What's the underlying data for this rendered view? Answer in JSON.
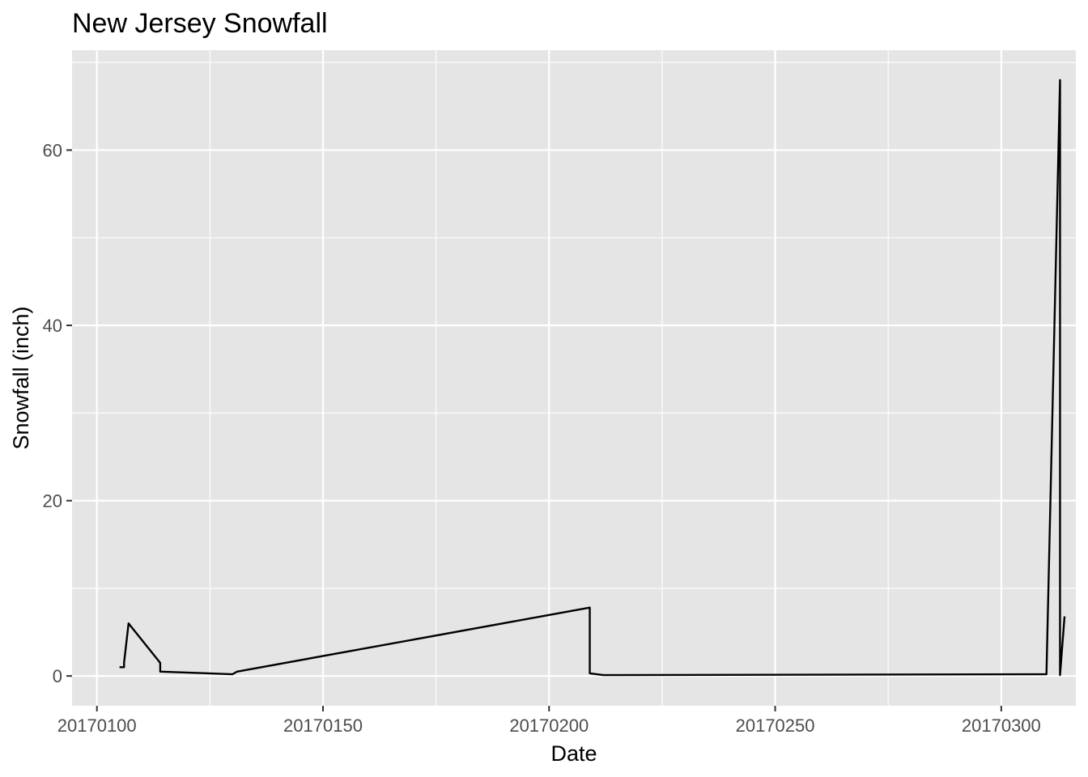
{
  "chart_data": {
    "type": "line",
    "title": "New Jersey Snowfall",
    "xlabel": "Date",
    "ylabel": "Snowfall (inch)",
    "xlim": [
      20170094.5,
      20170316.5
    ],
    "ylim": [
      -3.4,
      71.4
    ],
    "x_ticks": [
      20170100,
      20170150,
      20170200,
      20170250,
      20170300
    ],
    "x_tick_labels": [
      "20170100",
      "20170150",
      "20170200",
      "20170250",
      "20170300"
    ],
    "y_ticks": [
      0,
      20,
      40,
      60
    ],
    "y_tick_labels": [
      "0",
      "20",
      "40",
      "60"
    ],
    "grid": true,
    "legend": "none",
    "colors": {
      "panel_background": "#e5e5e5",
      "grid_line": "#ffffff",
      "line": "#000000",
      "tick_label": "#4d4d4d",
      "text": "#000000"
    },
    "series": [
      {
        "x": [
          20170105,
          20170106,
          20170106,
          20170107,
          20170114,
          20170114,
          20170130,
          20170131,
          20170209,
          20170209,
          20170212,
          20170310,
          20170310,
          20170313,
          20170313,
          20170314
        ],
        "y": [
          1.0,
          1.0,
          1.5,
          6.0,
          1.5,
          0.5,
          0.2,
          0.5,
          7.8,
          0.3,
          0.1,
          0.2,
          0.2,
          68.0,
          0.1,
          6.8
        ]
      }
    ]
  }
}
